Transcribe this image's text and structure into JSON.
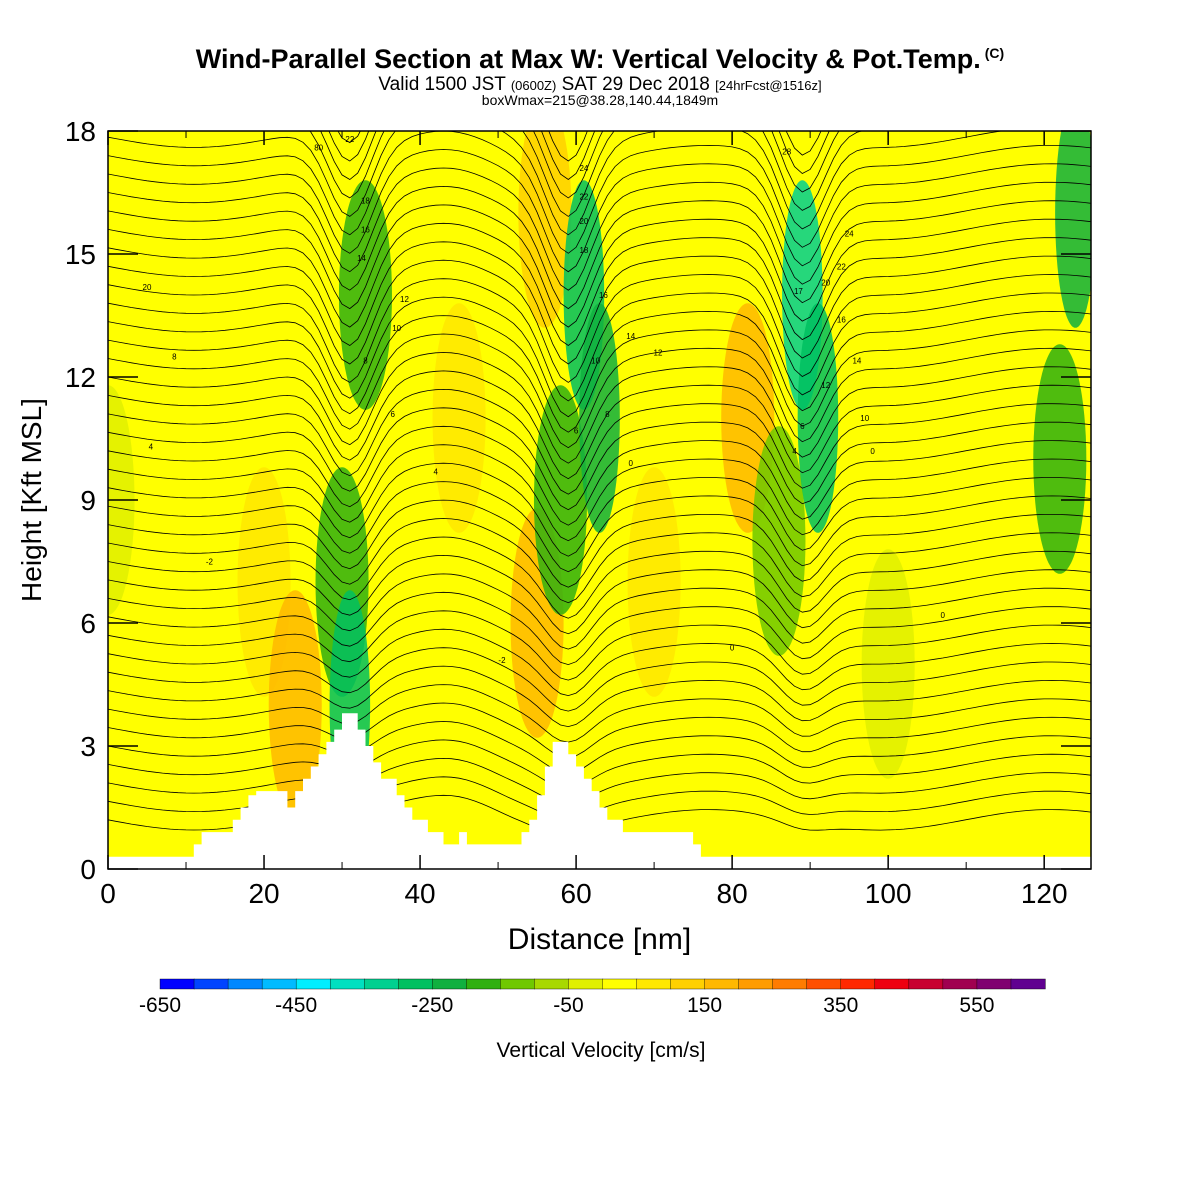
{
  "header": {
    "title_main": "Wind-Parallel Section at Max W: Vertical Velocity & Pot.Temp.",
    "title_copyright": "(C)",
    "valid_prefix": "Valid 1500 JST",
    "valid_zulu": "(0600Z)",
    "valid_date": "SAT 29 Dec 2018",
    "forecast_tag": "[24hrFcst@1516z]",
    "box_info": "boxWmax=215@38.28,140.44,1849m"
  },
  "chart_data": {
    "type": "heatmap",
    "xlabel": "Distance [nm]",
    "ylabel": "Height [Kft MSL]",
    "xlim": [
      0,
      126
    ],
    "ylim": [
      0,
      18
    ],
    "x_ticks": [
      0,
      20,
      40,
      60,
      80,
      100,
      120
    ],
    "y_ticks": [
      0,
      3,
      6,
      9,
      12,
      15,
      18
    ],
    "colorbar": {
      "label": "Vertical Velocity [cm/s]",
      "range": [
        -650,
        650
      ],
      "tick_labels": [
        -650,
        -450,
        -250,
        -50,
        150,
        350,
        550
      ],
      "colors": [
        "#0000ff",
        "#0044ff",
        "#0088ff",
        "#00bbff",
        "#00eeff",
        "#00e0c0",
        "#00d090",
        "#00c060",
        "#10b040",
        "#30b010",
        "#70c800",
        "#a8d800",
        "#e0f000",
        "#ffff00",
        "#ffe800",
        "#ffd000",
        "#ffb800",
        "#ff9c00",
        "#ff7c00",
        "#ff5000",
        "#ff2800",
        "#ee0010",
        "#c80030",
        "#a00050",
        "#800070",
        "#600090"
      ]
    },
    "terrain_profile": {
      "x": [
        0,
        10,
        11,
        12,
        15,
        16,
        17,
        18,
        19,
        22,
        23,
        24,
        25,
        26,
        27,
        28,
        29,
        30,
        31,
        32,
        33,
        34,
        35,
        36,
        37,
        38,
        39,
        40,
        41,
        42,
        43,
        44,
        45,
        46,
        47,
        48,
        49,
        50,
        51,
        52,
        53,
        54,
        55,
        56,
        57,
        58,
        59,
        60,
        61,
        62,
        63,
        64,
        65,
        66,
        67,
        68,
        69,
        70,
        71,
        72,
        73,
        74,
        75,
        76,
        77,
        78,
        79,
        80,
        126
      ],
      "y": [
        0.3,
        0.3,
        0.6,
        0.9,
        0.9,
        1.2,
        1.5,
        1.8,
        1.9,
        1.9,
        1.5,
        1.9,
        2.2,
        2.5,
        2.8,
        3.1,
        3.4,
        3.8,
        3.8,
        3.4,
        3.0,
        2.6,
        2.2,
        2.2,
        1.8,
        1.5,
        1.2,
        1.2,
        0.9,
        0.9,
        0.6,
        0.6,
        0.9,
        0.6,
        0.6,
        0.6,
        0.6,
        0.6,
        0.6,
        0.6,
        0.9,
        1.2,
        1.8,
        2.5,
        3.1,
        3.1,
        2.8,
        2.5,
        2.2,
        1.9,
        1.5,
        1.2,
        1.2,
        0.9,
        0.9,
        0.9,
        0.9,
        0.9,
        0.9,
        0.9,
        0.9,
        0.9,
        0.6,
        0.3,
        0.3,
        0.3,
        0.3,
        0.3,
        0.3
      ]
    },
    "velocity_features": [
      {
        "x": 0,
        "y": 9,
        "value": -30
      },
      {
        "x": 20,
        "y": 7,
        "value": 60
      },
      {
        "x": 24,
        "y": 4,
        "value": 160
      },
      {
        "x": 30,
        "y": 7,
        "value": -200
      },
      {
        "x": 31,
        "y": 4,
        "value": -260
      },
      {
        "x": 33,
        "y": 14,
        "value": -200
      },
      {
        "x": 45,
        "y": 11,
        "value": 80
      },
      {
        "x": 55,
        "y": 6,
        "value": 180
      },
      {
        "x": 56,
        "y": 16,
        "value": 120
      },
      {
        "x": 58,
        "y": 9,
        "value": -160
      },
      {
        "x": 61,
        "y": 14,
        "value": -300
      },
      {
        "x": 63,
        "y": 11,
        "value": -240
      },
      {
        "x": 70,
        "y": 7,
        "value": 60
      },
      {
        "x": 82,
        "y": 11,
        "value": 150
      },
      {
        "x": 86,
        "y": 8,
        "value": -140
      },
      {
        "x": 89,
        "y": 14,
        "value": -340
      },
      {
        "x": 91,
        "y": 11,
        "value": -280
      },
      {
        "x": 100,
        "y": 5,
        "value": -30
      },
      {
        "x": 112,
        "y": 9,
        "value": 40
      },
      {
        "x": 122,
        "y": 10,
        "value": -160
      },
      {
        "x": 124,
        "y": 16,
        "value": -220
      }
    ],
    "contour_labels": [
      {
        "text": "20",
        "x": 5,
        "y": 14.2
      },
      {
        "text": "8",
        "x": 8.5,
        "y": 12.5
      },
      {
        "text": "4",
        "x": 5.5,
        "y": 10.3
      },
      {
        "text": "-2",
        "x": 13,
        "y": 7.5
      },
      {
        "text": "-2",
        "x": 50.5,
        "y": 5.1
      },
      {
        "text": "80",
        "x": 27,
        "y": 17.6
      },
      {
        "text": "22",
        "x": 31,
        "y": 17.8
      },
      {
        "text": "18",
        "x": 33,
        "y": 16.3
      },
      {
        "text": "16",
        "x": 33,
        "y": 15.6
      },
      {
        "text": "14",
        "x": 32.5,
        "y": 14.9
      },
      {
        "text": "12",
        "x": 38,
        "y": 13.9
      },
      {
        "text": "10",
        "x": 37,
        "y": 13.2
      },
      {
        "text": "8",
        "x": 33,
        "y": 12.4
      },
      {
        "text": "6",
        "x": 36.5,
        "y": 11.1
      },
      {
        "text": "4",
        "x": 42,
        "y": 9.7
      },
      {
        "text": "24",
        "x": 61,
        "y": 17.1
      },
      {
        "text": "22",
        "x": 61,
        "y": 16.4
      },
      {
        "text": "20",
        "x": 61,
        "y": 15.8
      },
      {
        "text": "18",
        "x": 61,
        "y": 15.1
      },
      {
        "text": "16",
        "x": 63.5,
        "y": 14.0
      },
      {
        "text": "14",
        "x": 67,
        "y": 13.0
      },
      {
        "text": "12",
        "x": 70.5,
        "y": 12.6
      },
      {
        "text": "10",
        "x": 62.5,
        "y": 12.4
      },
      {
        "text": "8",
        "x": 64,
        "y": 11.1
      },
      {
        "text": "6",
        "x": 60,
        "y": 10.7
      },
      {
        "text": "0",
        "x": 67,
        "y": 9.9
      },
      {
        "text": "28",
        "x": 87,
        "y": 17.5
      },
      {
        "text": "24",
        "x": 95,
        "y": 15.5
      },
      {
        "text": "22",
        "x": 94,
        "y": 14.7
      },
      {
        "text": "20",
        "x": 92,
        "y": 14.3
      },
      {
        "text": "17",
        "x": 88.5,
        "y": 14.1
      },
      {
        "text": "16",
        "x": 94,
        "y": 13.4
      },
      {
        "text": "14",
        "x": 96,
        "y": 12.4
      },
      {
        "text": "12",
        "x": 92,
        "y": 11.8
      },
      {
        "text": "10",
        "x": 97,
        "y": 11.0
      },
      {
        "text": "6",
        "x": 89,
        "y": 10.8
      },
      {
        "text": "4",
        "x": 88,
        "y": 10.2
      },
      {
        "text": "0",
        "x": 98,
        "y": 10.2
      },
      {
        "text": "0",
        "x": 80,
        "y": 5.4
      },
      {
        "text": "0",
        "x": 107,
        "y": 6.2
      }
    ]
  }
}
